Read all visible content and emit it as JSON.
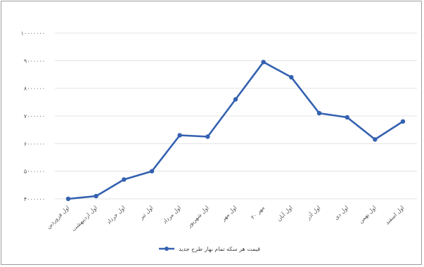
{
  "chart_data": {
    "type": "line",
    "categories": [
      "اول فروردین",
      "اول اردیبهشت",
      "اول خرداد",
      "اول تیر",
      "اول مرداد",
      "اول شهریور",
      "اول مهر",
      "۲۰ مهر",
      "اول آبان",
      "اول آذر",
      "اول دی",
      "اول بهمن",
      "اول اسفند"
    ],
    "series": [
      {
        "name": "قیمت هر سکه تمام بهار طرح جدید",
        "values": [
          4000000,
          4100000,
          4700000,
          5000000,
          6300000,
          6250000,
          7600000,
          8950000,
          8400000,
          7100000,
          6950000,
          6150000,
          6800000
        ],
        "color": "#3461b0"
      }
    ],
    "yticks": [
      "۴۰۰۰۰۰۰",
      "۵۰۰۰۰۰۰",
      "۶۰۰۰۰۰۰",
      "۷۰۰۰۰۰۰",
      "۸۰۰۰۰۰۰",
      "۹۰۰۰۰۰۰",
      "۱۰۰۰۰۰۰۰"
    ],
    "ylim": [
      4000000,
      10000000
    ],
    "ystep": 1000000,
    "grid": true,
    "legend": "bottom"
  }
}
